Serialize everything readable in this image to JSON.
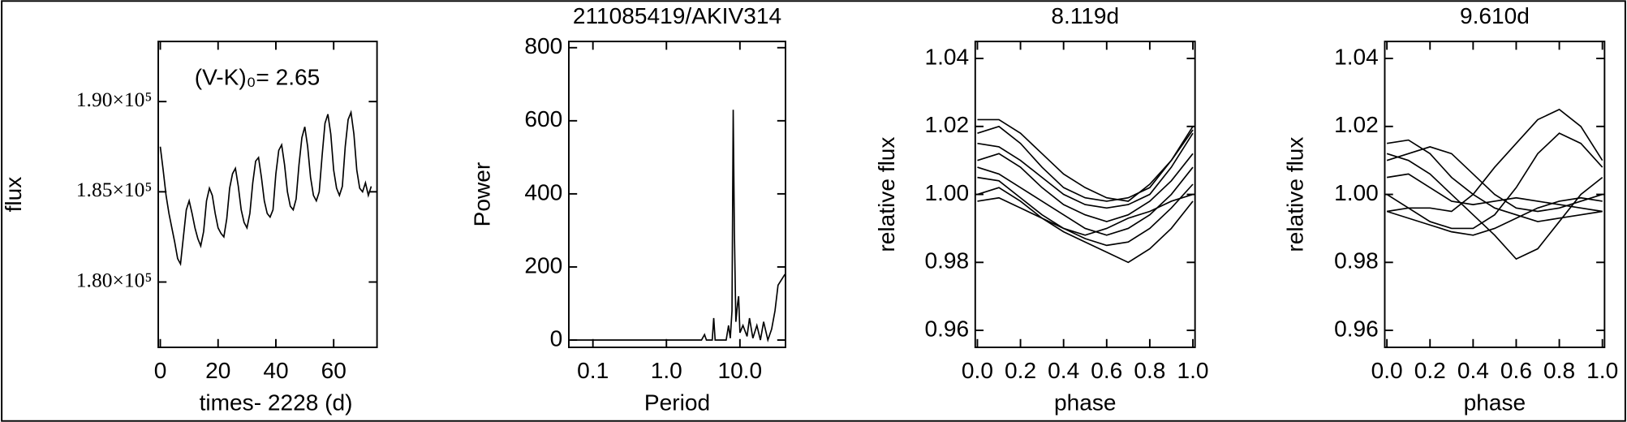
{
  "chart_data": [
    {
      "type": "line",
      "xlabel": "times- 2228 (d)",
      "ylabel": "flux",
      "annotation": "(V-K)₀= 2.65",
      "color": "#000000",
      "x": [
        0,
        1,
        2,
        3,
        4,
        5,
        6,
        7,
        8,
        9,
        10,
        11,
        12,
        13,
        14,
        15,
        16,
        17,
        18,
        19,
        20,
        21,
        22,
        23,
        24,
        25,
        26,
        27,
        28,
        29,
        30,
        31,
        32,
        33,
        34,
        35,
        36,
        37,
        38,
        39,
        40,
        41,
        42,
        43,
        44,
        45,
        46,
        47,
        48,
        49,
        50,
        51,
        52,
        53,
        54,
        55,
        56,
        57,
        58,
        59,
        60,
        61,
        62,
        63,
        64,
        65,
        66,
        67,
        68,
        69,
        70,
        71,
        72,
        73
      ],
      "values": [
        187500,
        186200,
        184800,
        183800,
        183000,
        182200,
        181300,
        181000,
        182500,
        184000,
        184500,
        183800,
        183000,
        182400,
        182000,
        182800,
        184500,
        185200,
        184800,
        183800,
        183000,
        182700,
        182500,
        183500,
        185200,
        186000,
        186300,
        185300,
        184000,
        183300,
        183000,
        183800,
        185500,
        186700,
        186900,
        185800,
        184500,
        183800,
        183600,
        184000,
        186000,
        187300,
        187600,
        186500,
        185000,
        184200,
        184000,
        184600,
        186500,
        188000,
        188600,
        187500,
        185800,
        184800,
        184500,
        185000,
        187000,
        188800,
        189300,
        188200,
        186200,
        185200,
        184800,
        185300,
        187500,
        189000,
        189400,
        188200,
        186200,
        185200,
        185000,
        185500,
        184800,
        185300
      ],
      "xlim": [
        -0.7,
        75
      ],
      "xticks": [
        0,
        20,
        40,
        60
      ],
      "ylim": [
        176380,
        193330
      ],
      "yticks": [
        {
          "value": 180000,
          "label": "1.80×10⁵"
        },
        {
          "value": 185000,
          "label": "1.85×10⁵"
        },
        {
          "value": 190000,
          "label": "1.90×10⁵"
        }
      ]
    },
    {
      "type": "line",
      "title": "211085419/AKIV314",
      "xlabel": "Period",
      "ylabel": "Power",
      "xscale": "log",
      "color": "#000000",
      "x": [
        0.05,
        1,
        3.0,
        3.3,
        3.5,
        4.2,
        4.4,
        4.6,
        6.5,
        7.0,
        7.4,
        7.8,
        8.1,
        8.4,
        8.8,
        9.3,
        9.6,
        10,
        11,
        12.5,
        13.5,
        15,
        17,
        19,
        21,
        24,
        27,
        30,
        33,
        41
      ],
      "values": [
        0,
        0,
        0,
        15,
        0,
        0,
        60,
        0,
        0,
        40,
        5,
        80,
        630,
        300,
        50,
        100,
        120,
        20,
        40,
        10,
        60,
        5,
        40,
        0,
        50,
        0,
        30,
        80,
        150,
        180
      ],
      "xlim": [
        0.047,
        41.7
      ],
      "xticks": [
        0.1,
        {
          "value": 1,
          "label": "1.0"
        },
        {
          "value": 10,
          "label": "10.0"
        }
      ],
      "ylim": [
        -20,
        817
      ],
      "yticks": [
        0,
        200,
        400,
        600,
        800
      ]
    },
    {
      "type": "line",
      "title": "8.119d",
      "xlabel": "phase",
      "ylabel": "relative flux",
      "x": [
        0,
        0.1,
        0.2,
        0.3,
        0.4,
        0.5,
        0.6,
        0.7,
        0.8,
        0.9,
        1
      ],
      "series": [
        {
          "color": "#000000",
          "values": [
            1.022,
            1.022,
            1.018,
            1.012,
            1.006,
            1.002,
            0.999,
            0.998,
            1.003,
            1.01,
            1.019
          ]
        },
        {
          "color": "#000000",
          "values": [
            1.015,
            1.014,
            1.01,
            1.005,
            1.0,
            0.997,
            0.996,
            0.997,
            1.0,
            1.008,
            1.018
          ]
        },
        {
          "color": "#000000",
          "values": [
            1.01,
            1.012,
            1.008,
            1.002,
            0.997,
            0.994,
            0.992,
            0.994,
            0.998,
            1.004,
            1.012
          ]
        },
        {
          "color": "#000000",
          "values": [
            1.008,
            1.006,
            1.002,
            0.998,
            0.994,
            0.99,
            0.988,
            0.99,
            0.994,
            1.0,
            1.008
          ]
        },
        {
          "color": "#000000",
          "values": [
            1.005,
            1.004,
            0.999,
            0.994,
            0.99,
            0.987,
            0.985,
            0.986,
            0.99,
            0.996,
            1.003
          ]
        },
        {
          "color": "#000000",
          "values": [
            1.0,
            1.002,
            0.998,
            0.993,
            0.989,
            0.986,
            0.983,
            0.98,
            0.984,
            0.99,
            0.998
          ]
        },
        {
          "color": "#000000",
          "values": [
            0.998,
            0.999,
            0.996,
            0.993,
            0.99,
            0.988,
            0.99,
            0.993,
            0.995,
            0.998,
            1.0
          ]
        },
        {
          "color": "#000000",
          "values": [
            1.018,
            1.02,
            1.015,
            1.008,
            1.002,
            0.999,
            0.998,
            0.999,
            1.002,
            1.01,
            1.02
          ]
        }
      ],
      "xlim": [
        -0.01,
        1.01
      ],
      "xticks": [
        {
          "value": 0,
          "label": "0.0"
        },
        0.2,
        0.4,
        0.6,
        0.8,
        {
          "value": 1,
          "label": "1.0"
        }
      ],
      "ylim": [
        0.955,
        1.045
      ],
      "yticks": [
        0.96,
        0.98,
        {
          "value": 1,
          "label": "1.00"
        },
        1.02,
        1.04
      ]
    },
    {
      "type": "line",
      "title": "9.610d",
      "xlabel": "phase",
      "ylabel": "relative flux",
      "x": [
        0,
        0.1,
        0.2,
        0.3,
        0.4,
        0.5,
        0.6,
        0.7,
        0.8,
        0.9,
        1
      ],
      "series": [
        {
          "color": "#000000",
          "values": [
            0.995,
            0.996,
            0.996,
            0.995,
            1.0,
            1.008,
            1.015,
            1.022,
            1.025,
            1.02,
            1.01
          ]
        },
        {
          "color": "#000000",
          "values": [
            1.012,
            1.01,
            1.006,
            1.0,
            0.994,
            0.988,
            0.981,
            0.984,
            0.992,
            1.0,
            1.005
          ]
        },
        {
          "color": "#000000",
          "values": [
            0.995,
            0.993,
            0.991,
            0.989,
            0.988,
            0.99,
            0.993,
            0.996,
            0.998,
            0.999,
            0.998
          ]
        },
        {
          "color": "#000000",
          "values": [
            1.01,
            1.012,
            1.014,
            1.012,
            1.006,
            1.0,
            0.996,
            0.995,
            0.996,
            0.998,
            1.0
          ]
        },
        {
          "color": "#000000",
          "values": [
            1.005,
            1.006,
            1.002,
            0.998,
            0.997,
            0.998,
            0.999,
            0.998,
            0.997,
            0.996,
            0.995
          ]
        },
        {
          "color": "#000000",
          "values": [
            1.0,
            0.996,
            0.992,
            0.99,
            0.99,
            0.994,
            1.002,
            1.012,
            1.018,
            1.015,
            1.008
          ]
        },
        {
          "color": "#000000",
          "values": [
            1.015,
            1.016,
            1.012,
            1.005,
            1.0,
            0.996,
            0.994,
            0.992,
            0.993,
            0.994,
            0.995
          ]
        }
      ],
      "xlim": [
        -0.01,
        1.01
      ],
      "xticks": [
        {
          "value": 0,
          "label": "0.0"
        },
        0.2,
        0.4,
        0.6,
        0.8,
        {
          "value": 1,
          "label": "1.0"
        }
      ],
      "ylim": [
        0.955,
        1.045
      ],
      "yticks": [
        0.96,
        0.98,
        {
          "value": 1,
          "label": "1.00"
        },
        1.02,
        1.04
      ]
    }
  ]
}
